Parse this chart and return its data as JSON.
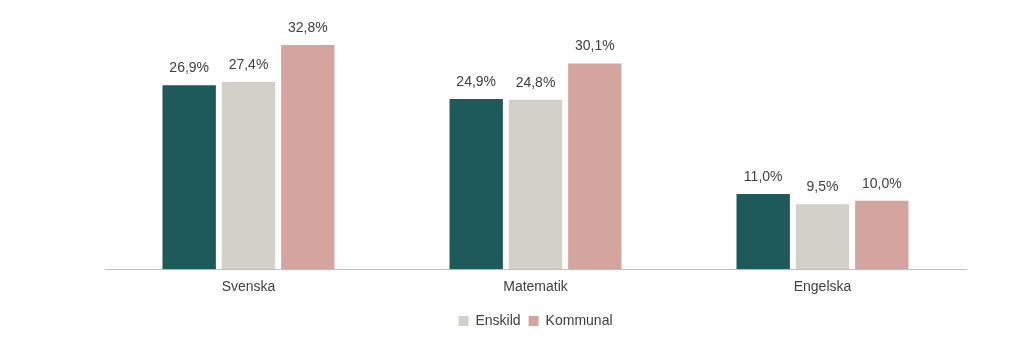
{
  "chart_data": {
    "type": "bar",
    "categories": [
      "Svenska",
      "Matematik",
      "Engelska"
    ],
    "series": [
      {
        "color": "#1e5a5a",
        "values": [
          26.9,
          24.9,
          11.0
        ],
        "value_labels": [
          "26,9%",
          "24,9%",
          "11,0%"
        ]
      },
      {
        "name": "Enskild",
        "color": "#d1d1c9",
        "values": [
          27.4,
          24.8,
          9.5
        ],
        "value_labels": [
          "27,4%",
          "24,8%",
          "9,5%"
        ]
      },
      {
        "name": "Kommunal",
        "color": "#d4a59f",
        "values": [
          32.8,
          30.1,
          10.0
        ],
        "value_labels": [
          "32,8%",
          "30,1%",
          "10,0%"
        ]
      }
    ],
    "tick_labels": "x",
    "grid": false,
    "legend": "bottom"
  }
}
